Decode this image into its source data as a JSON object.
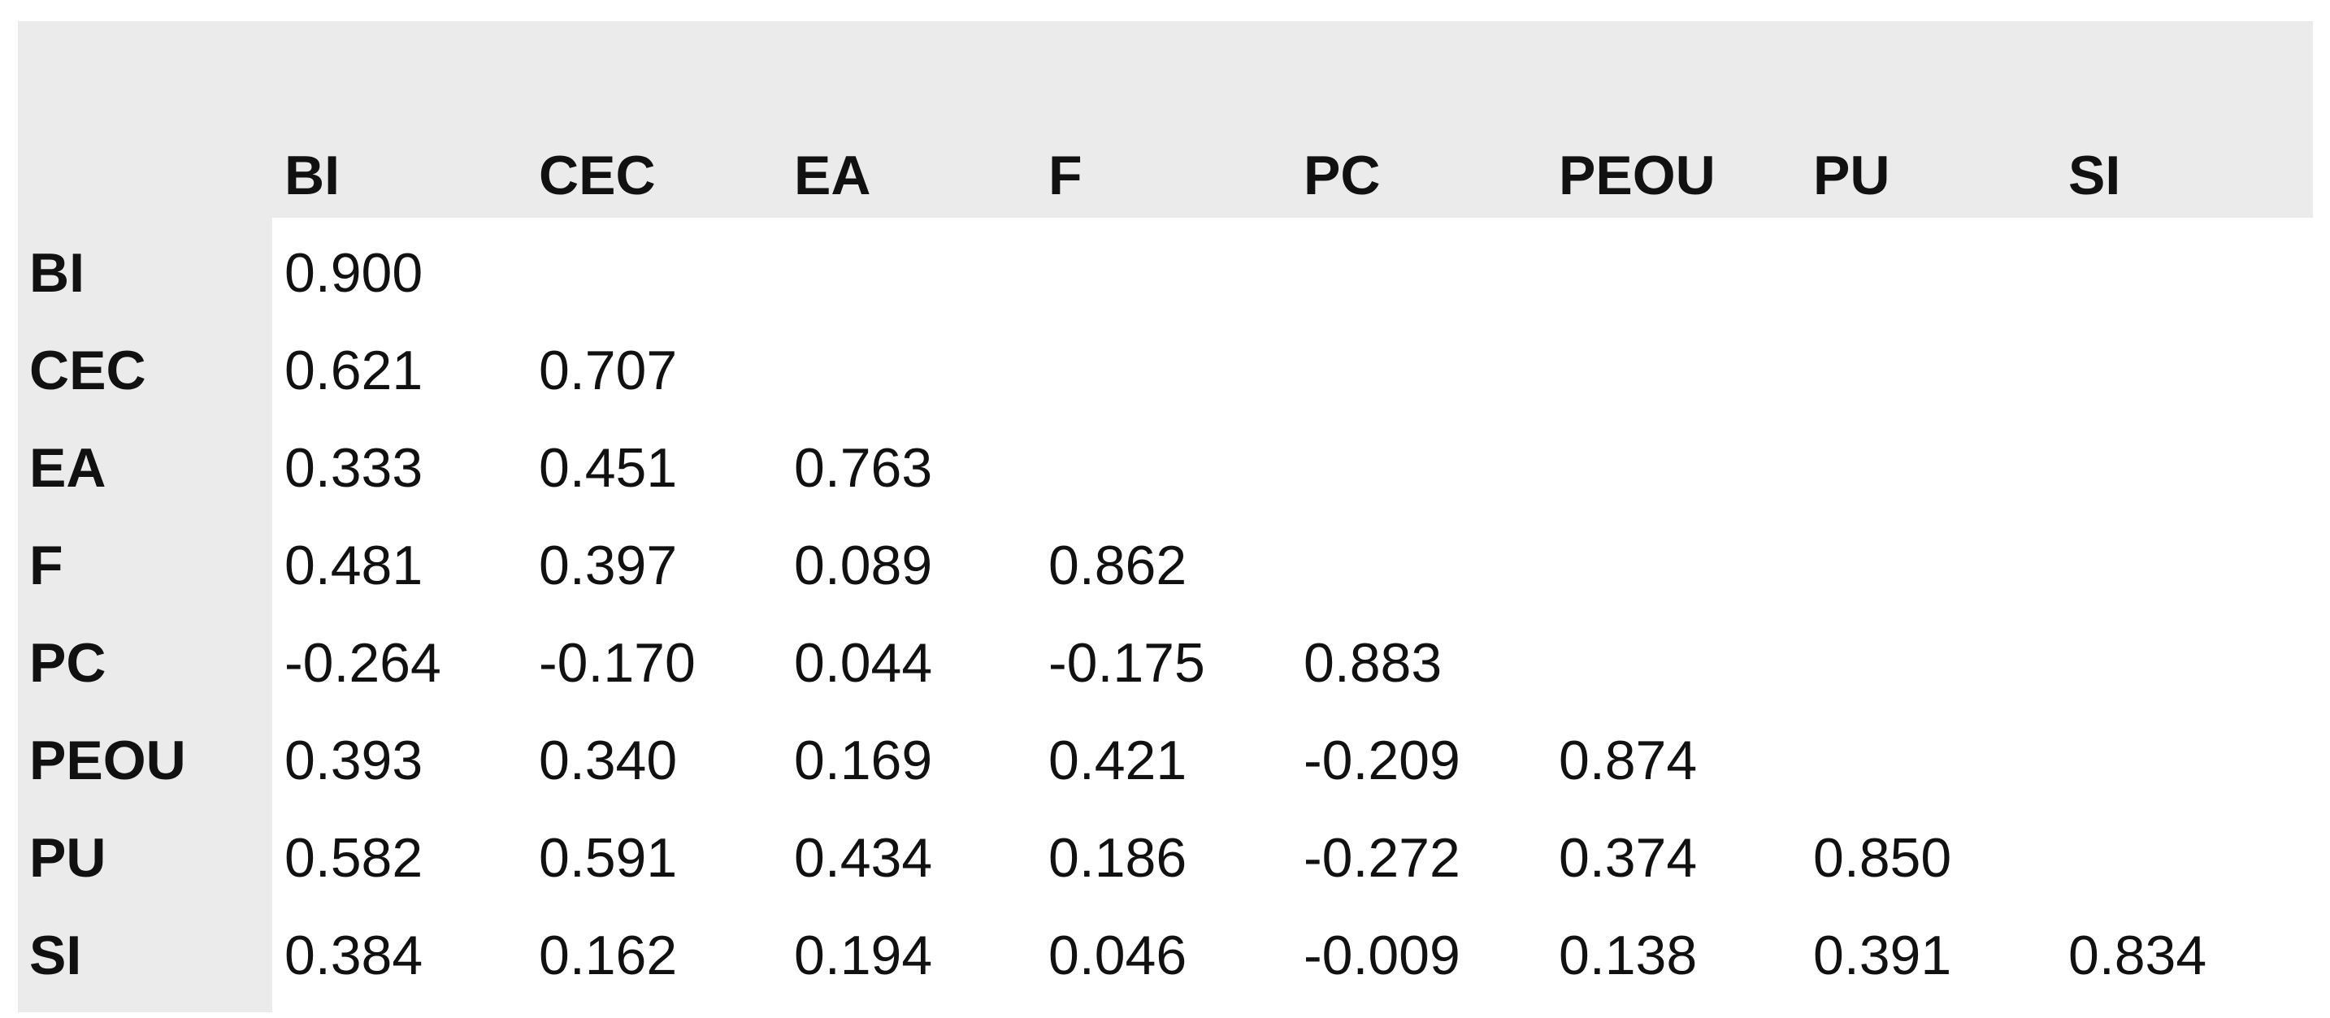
{
  "table": {
    "columns": [
      "BI",
      "CEC",
      "EA",
      "F",
      "PC",
      "PEOU",
      "PU",
      "SI"
    ],
    "rows": [
      {
        "label": "BI",
        "values": [
          "0.900"
        ]
      },
      {
        "label": "CEC",
        "values": [
          "0.621",
          "0.707"
        ]
      },
      {
        "label": "EA",
        "values": [
          "0.333",
          "0.451",
          "0.763"
        ]
      },
      {
        "label": "F",
        "values": [
          "0.481",
          "0.397",
          "0.089",
          "0.862"
        ]
      },
      {
        "label": "PC",
        "values": [
          "-0.264",
          "-0.170",
          "0.044",
          "-0.175",
          "0.883"
        ]
      },
      {
        "label": "PEOU",
        "values": [
          "0.393",
          "0.340",
          "0.169",
          "0.421",
          "-0.209",
          "0.874"
        ]
      },
      {
        "label": "PU",
        "values": [
          "0.582",
          "0.591",
          "0.434",
          "0.186",
          "-0.272",
          "0.374",
          "0.850"
        ]
      },
      {
        "label": "SI",
        "values": [
          "0.384",
          "0.162",
          "0.194",
          "0.046",
          "-0.009",
          "0.138",
          "0.391",
          "0.834"
        ]
      }
    ]
  },
  "colors": {
    "header_background": "#ebebeb",
    "cell_background": "#ffffff",
    "text": "#111111"
  }
}
